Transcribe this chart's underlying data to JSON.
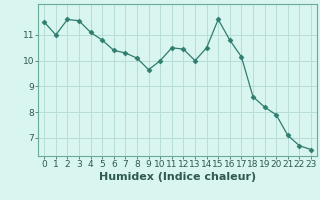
{
  "x": [
    0,
    1,
    2,
    3,
    4,
    5,
    6,
    7,
    8,
    9,
    10,
    11,
    12,
    13,
    14,
    15,
    16,
    17,
    18,
    19,
    20,
    21,
    22,
    23
  ],
  "y": [
    11.5,
    11.0,
    11.6,
    11.55,
    11.1,
    10.8,
    10.4,
    10.3,
    10.1,
    9.65,
    10.0,
    10.5,
    10.45,
    10.0,
    10.5,
    11.6,
    10.8,
    10.15,
    8.6,
    8.2,
    7.9,
    7.1,
    6.7,
    6.55
  ],
  "line_color": "#2e7d6e",
  "marker": "D",
  "marker_size": 2.5,
  "bg_color": "#d8f5f0",
  "grid_color": "#b8ddd8",
  "xlabel": "Humidex (Indice chaleur)",
  "ylim": [
    6.3,
    12.2
  ],
  "xlim": [
    -0.5,
    23.5
  ],
  "yticks": [
    7,
    8,
    9,
    10,
    11
  ],
  "xticks": [
    0,
    1,
    2,
    3,
    4,
    5,
    6,
    7,
    8,
    9,
    10,
    11,
    12,
    13,
    14,
    15,
    16,
    17,
    18,
    19,
    20,
    21,
    22,
    23
  ],
  "tick_label_fontsize": 6.5,
  "xlabel_fontsize": 8,
  "line_color_axis": "#6aaa9a"
}
